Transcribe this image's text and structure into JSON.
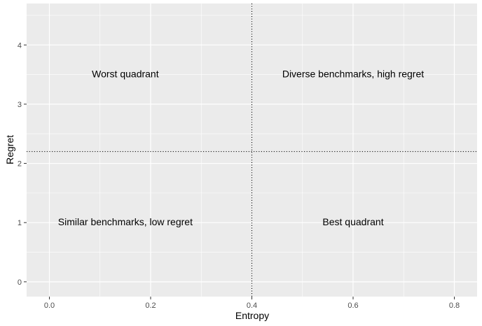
{
  "chart_data": {
    "type": "scatter",
    "xlabel": "Entropy",
    "ylabel": "Regret",
    "xlim": [
      -0.045,
      0.845
    ],
    "ylim": [
      -0.25,
      4.7
    ],
    "x_ticks": [
      0.0,
      0.2,
      0.4,
      0.6,
      0.8
    ],
    "x_tick_labels": [
      "0.0",
      "0.2",
      "0.4",
      "0.6",
      "0.8"
    ],
    "y_ticks": [
      0,
      1,
      2,
      3,
      4
    ],
    "y_tick_labels": [
      "0",
      "1",
      "2",
      "3",
      "4"
    ],
    "reference_lines": {
      "vertical_x": 0.4,
      "horizontal_y": 2.2,
      "style": "dotted"
    },
    "annotations": [
      {
        "text": "Worst quadrant",
        "x": 0.15,
        "y": 3.5
      },
      {
        "text": "Diverse benchmarks, high regret",
        "x": 0.6,
        "y": 3.5
      },
      {
        "text": "Similar benchmarks, low regret",
        "x": 0.15,
        "y": 1.0
      },
      {
        "text": "Best quadrant",
        "x": 0.6,
        "y": 1.0
      }
    ],
    "grid": true,
    "panel_background": "#ebebeb",
    "grid_color": "#ffffff"
  }
}
